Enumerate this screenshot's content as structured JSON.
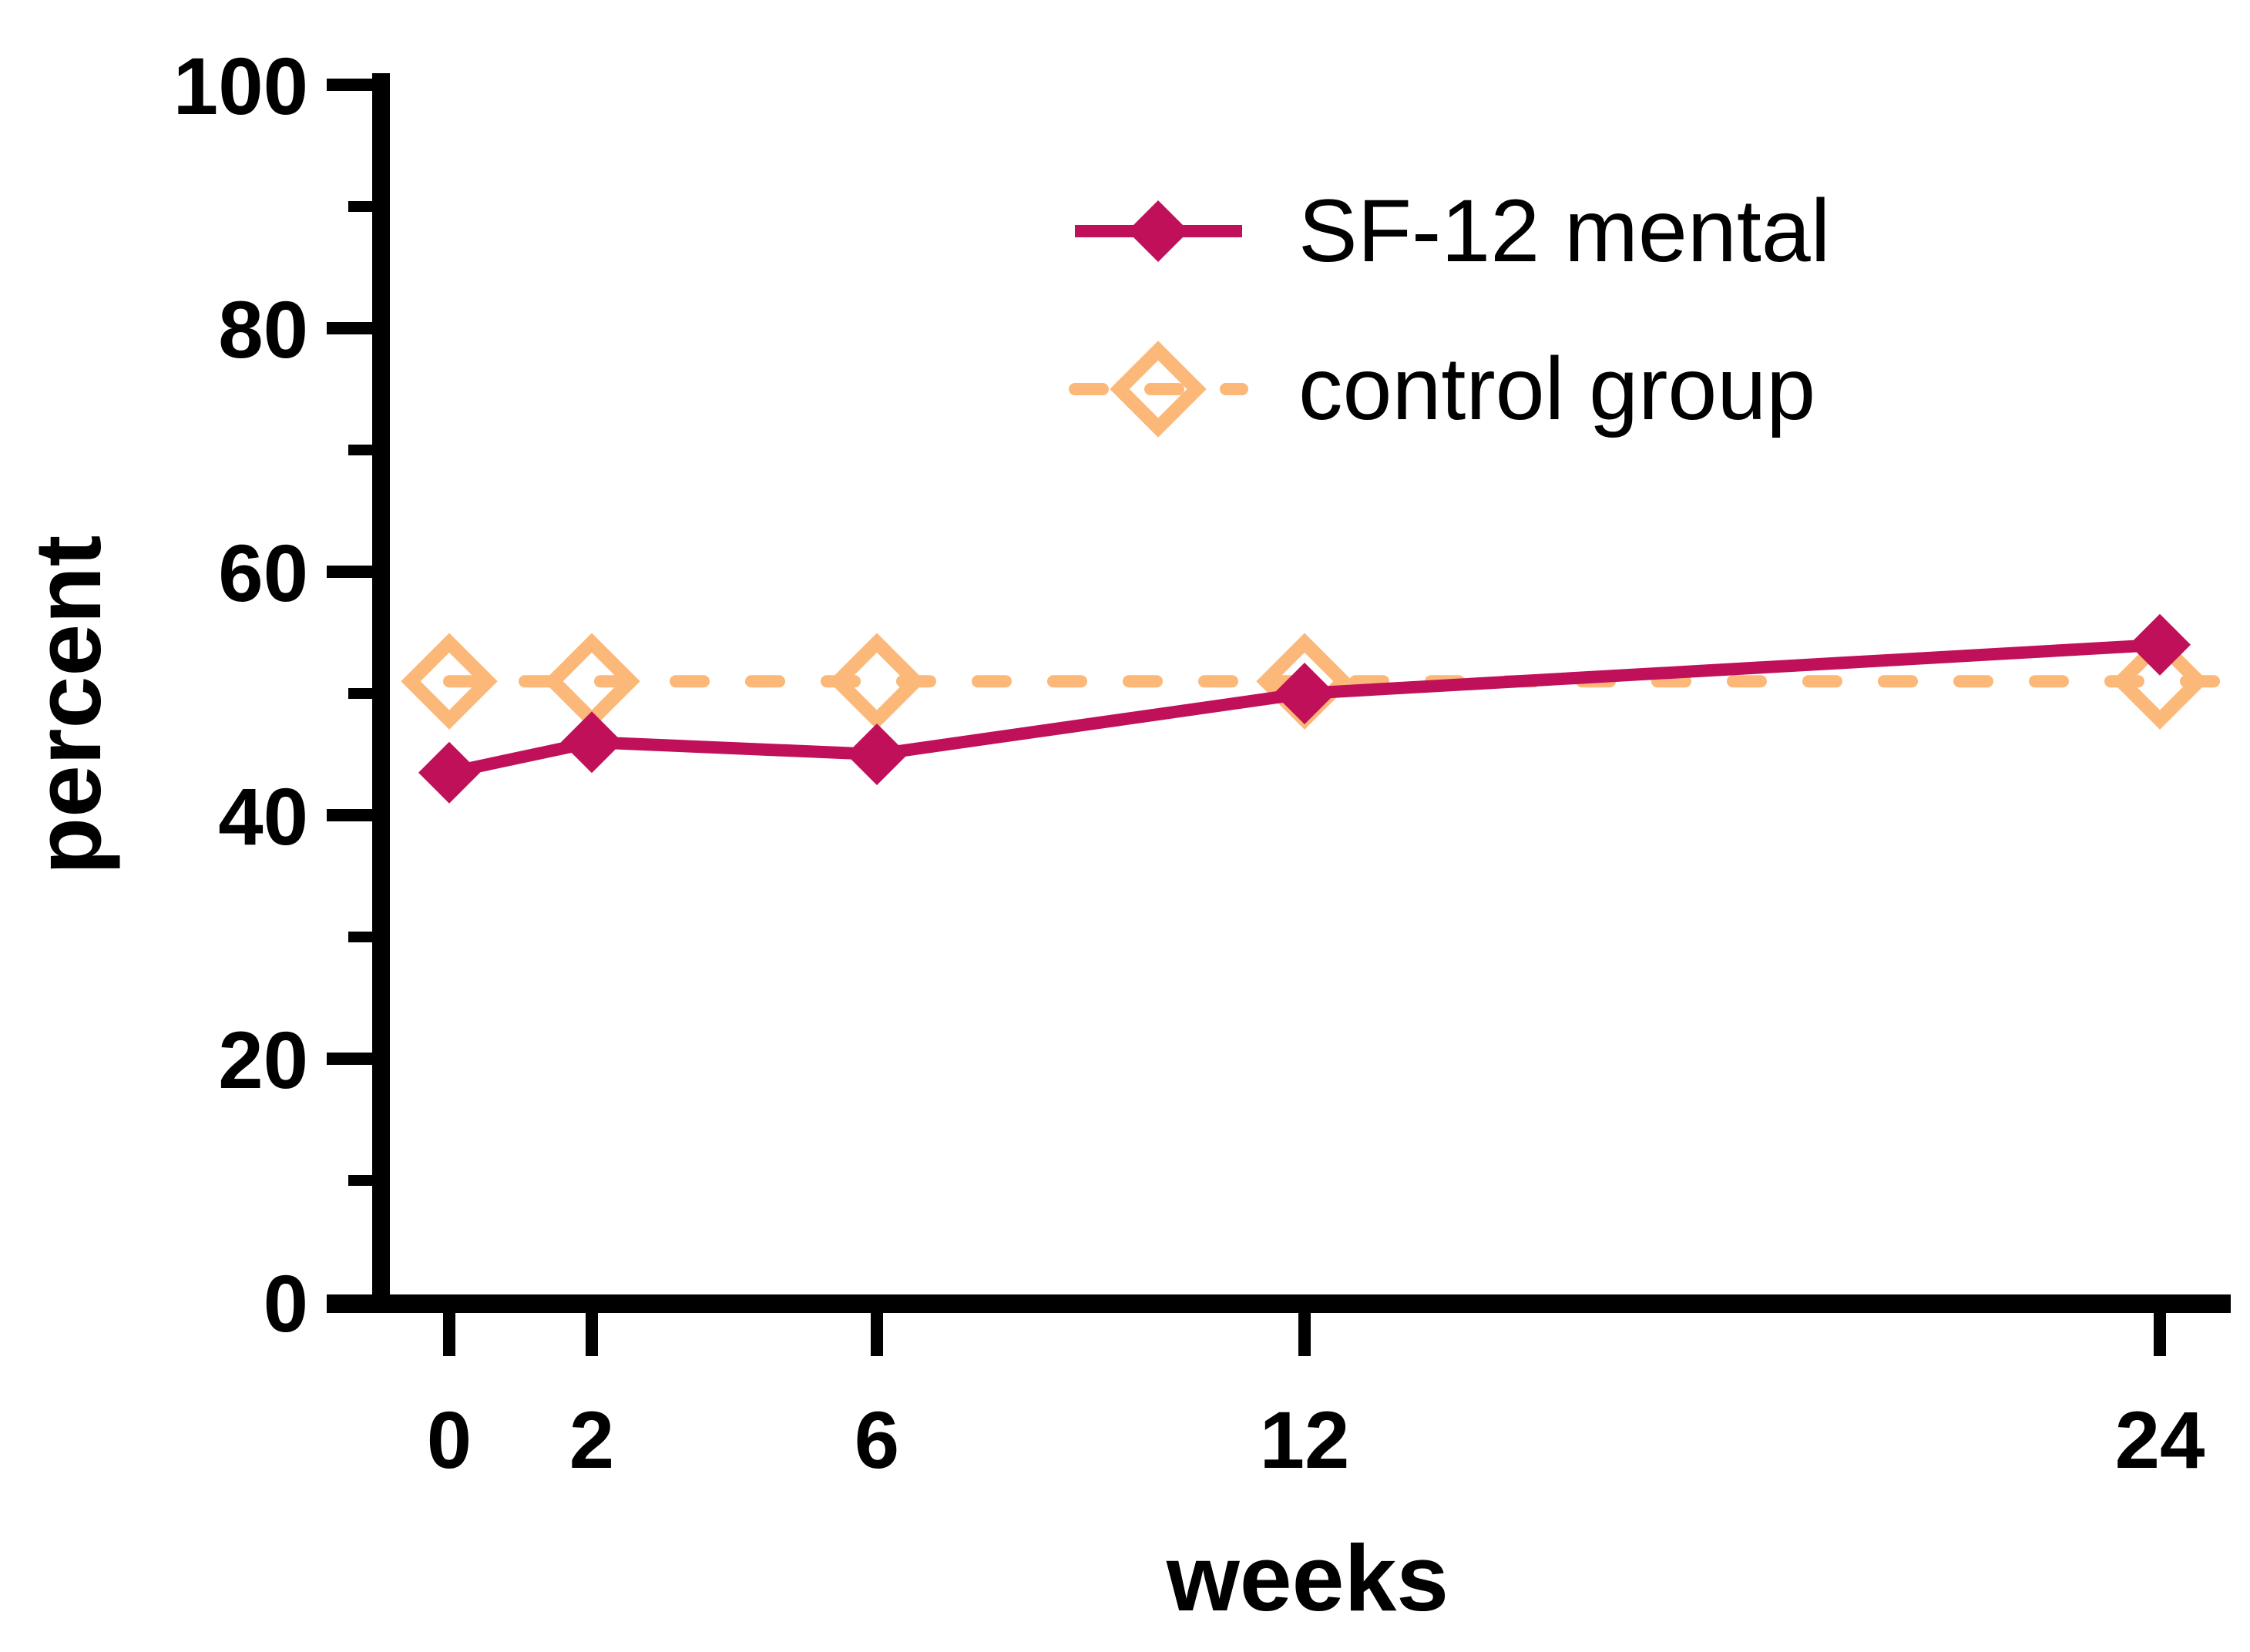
{
  "chart_data": {
    "type": "line",
    "title": "",
    "xlabel": "weeks",
    "ylabel": "percent",
    "x": [
      0,
      2,
      6,
      12,
      24
    ],
    "xtick_labels": [
      "0",
      "2",
      "6",
      "12",
      "24"
    ],
    "yticks": [
      0,
      20,
      40,
      60,
      80,
      100
    ],
    "yminorticks": [
      10,
      30,
      50,
      70,
      90
    ],
    "xlim": [
      0,
      25.2
    ],
    "ylim": [
      0,
      100
    ],
    "grid": false,
    "legend_position": "inside-top-right",
    "axis_color": "#000000",
    "background_color": "#ffffff",
    "series": [
      {
        "name": "SF-12 mental",
        "x": [
          0,
          2,
          6,
          12,
          24
        ],
        "values": [
          43.5,
          46,
          45,
          50,
          54
        ],
        "color": "#c01059",
        "line_style": "solid",
        "marker": "filled-diamond",
        "draw_on_top": true
      },
      {
        "name": "control group",
        "x": [
          0,
          2,
          6,
          12,
          24
        ],
        "values": [
          51,
          51,
          51,
          51,
          51
        ],
        "color": "#fbb878",
        "line_style": "dashed",
        "marker": "open-diamond",
        "line_extends_to_plot_right_edge": true
      }
    ]
  }
}
